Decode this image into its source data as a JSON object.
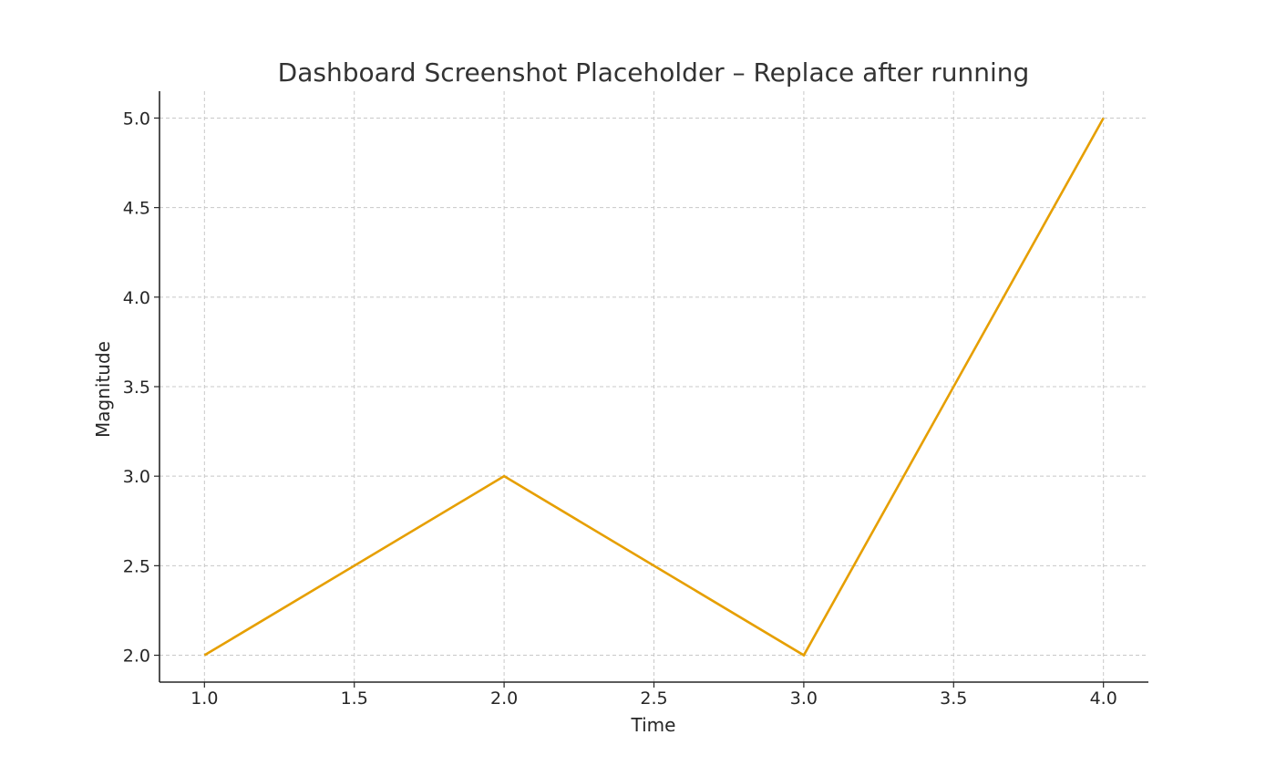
{
  "chart_data": {
    "type": "line",
    "title": "Dashboard Screenshot Placeholder – Replace after running",
    "xlabel": "Time",
    "ylabel": "Magnitude",
    "x": [
      1,
      2,
      3,
      4
    ],
    "series": [
      {
        "values": [
          2,
          3,
          2,
          5
        ],
        "color": "#E69F00"
      }
    ],
    "xlim": [
      0.85,
      4.15
    ],
    "ylim": [
      1.85,
      5.15
    ],
    "xticks": [
      1.0,
      1.5,
      2.0,
      2.5,
      3.0,
      3.5,
      4.0
    ],
    "yticks": [
      2.0,
      2.5,
      3.0,
      3.5,
      4.0,
      4.5,
      5.0
    ],
    "xtick_labels": [
      "1.0",
      "1.5",
      "2.0",
      "2.5",
      "3.0",
      "3.5",
      "4.0"
    ],
    "ytick_labels": [
      "2.0",
      "2.5",
      "3.0",
      "3.5",
      "4.0",
      "4.5",
      "5.0"
    ],
    "grid": true,
    "grid_style": "dashed",
    "colors": {
      "grid": "#c8c8c8",
      "axis": "#262626",
      "text": "#262626",
      "title": "#333333"
    }
  }
}
